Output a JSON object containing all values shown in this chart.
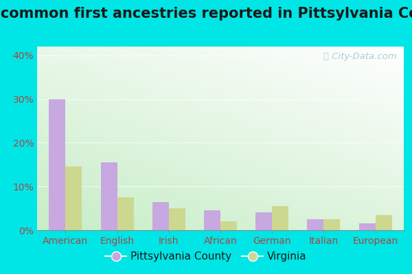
{
  "title": "Most common first ancestries reported in Pittsylvania County",
  "categories": [
    "American",
    "English",
    "Irish",
    "African",
    "German",
    "Italian",
    "European"
  ],
  "pittsylvania": [
    30.0,
    15.5,
    6.5,
    4.5,
    4.0,
    2.5,
    1.5
  ],
  "virginia": [
    14.5,
    7.5,
    5.0,
    2.0,
    5.5,
    2.5,
    3.5
  ],
  "bar_color_pitts": "#c8a8e0",
  "bar_color_virginia": "#ccd890",
  "background_outer": "#00e5e5",
  "bg_top_right": "#ffffff",
  "bg_bottom_left": "#c8eec8",
  "ylim": [
    0,
    42
  ],
  "yticks": [
    0,
    10,
    20,
    30,
    40
  ],
  "ytick_labels": [
    "0%",
    "10%",
    "20%",
    "30%",
    "40%"
  ],
  "legend_label_1": "Pittsylvania County",
  "legend_label_2": "Virginia",
  "title_fontsize": 15,
  "axis_label_fontsize": 10,
  "legend_fontsize": 11,
  "watermark_color": "#a0c8d0",
  "tick_label_color": "#aa4444"
}
